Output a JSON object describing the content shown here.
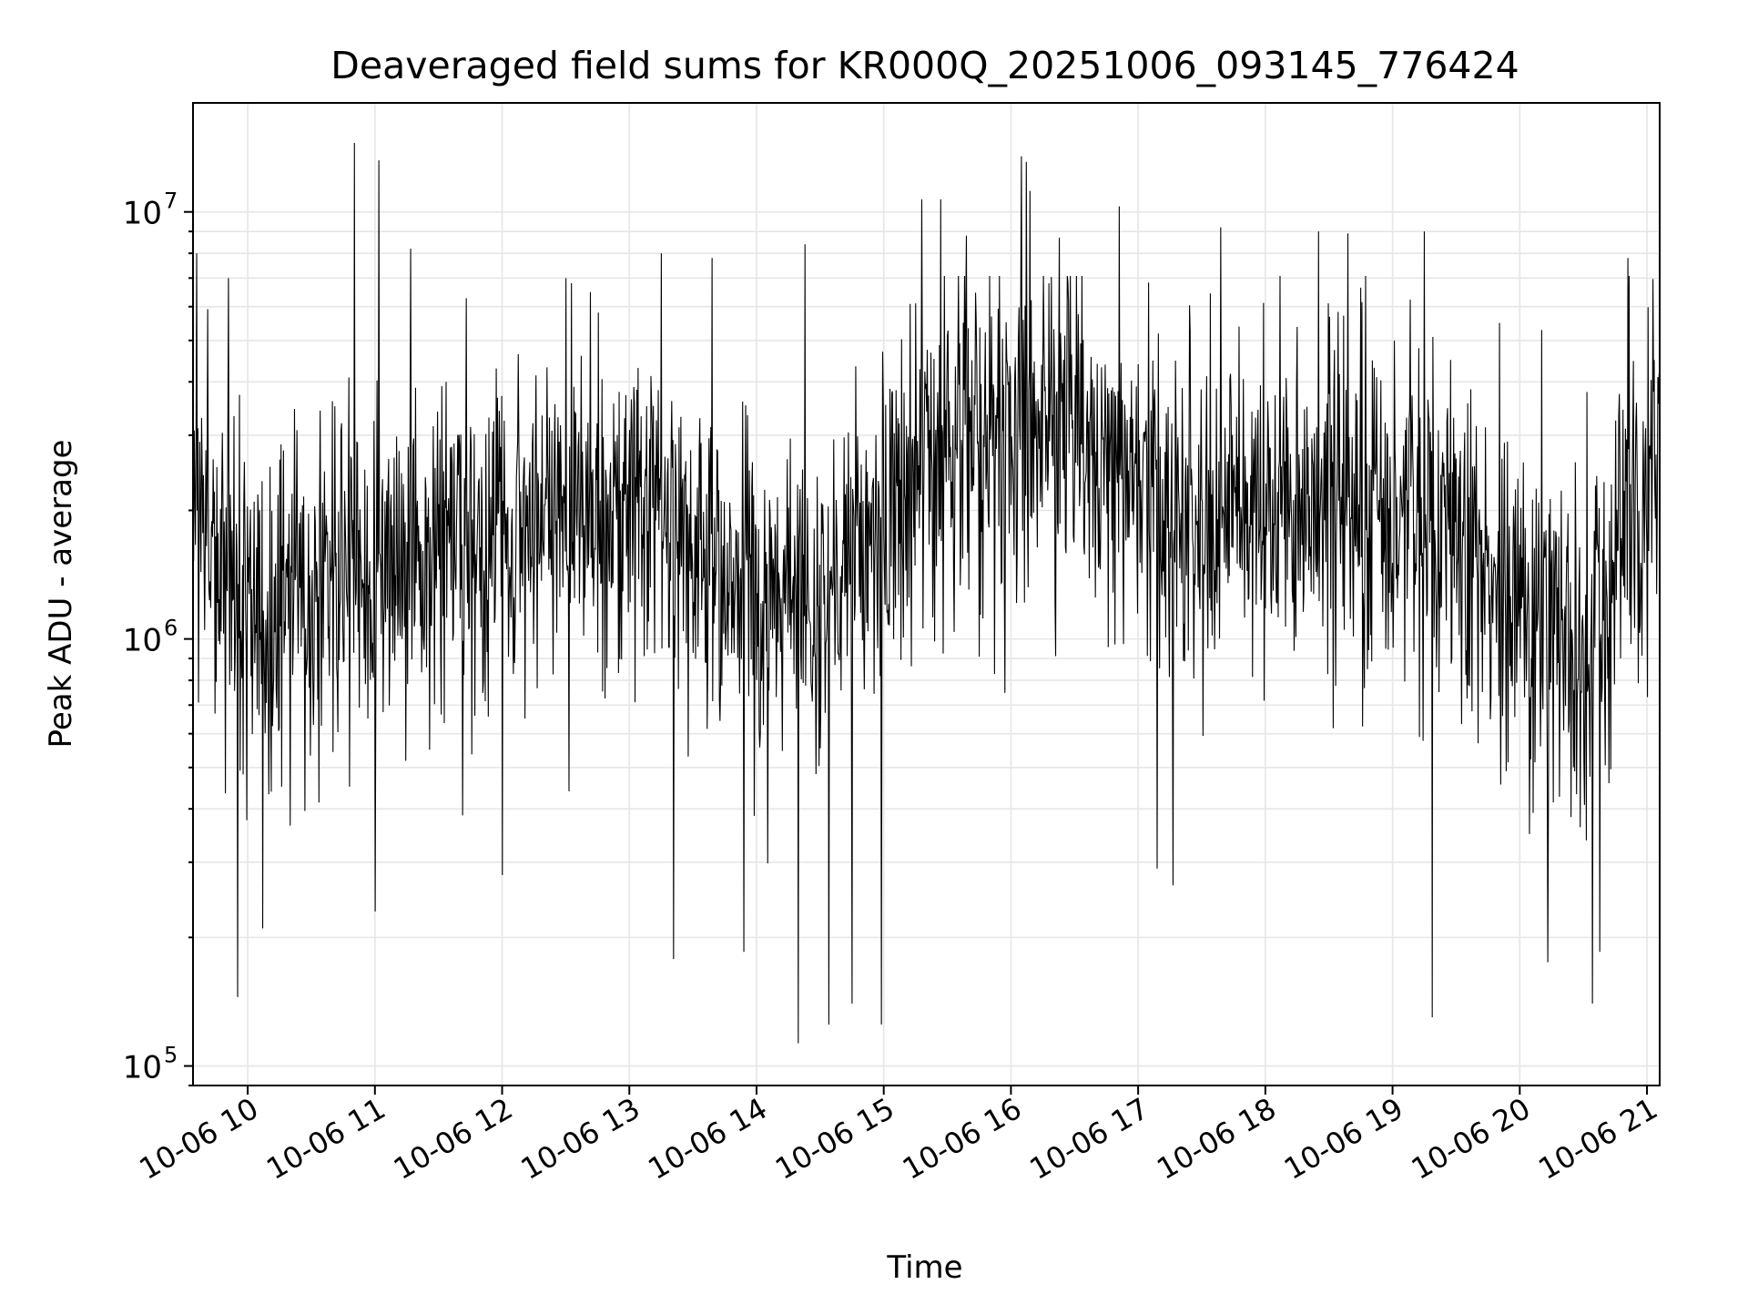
{
  "chart_data": {
    "type": "line",
    "title": "Deaveraged field sums for KR000Q_20251006_093145_776424",
    "xlabel": "Time",
    "ylabel": "Peak ADU - average",
    "yscale": "log",
    "ylim": [
      90000,
      18000000
    ],
    "xlim_hours": [
      9.57,
      21.1
    ],
    "x_ticks": [
      {
        "hour": 10,
        "label": "10-06 10"
      },
      {
        "hour": 11,
        "label": "10-06 11"
      },
      {
        "hour": 12,
        "label": "10-06 12"
      },
      {
        "hour": 13,
        "label": "10-06 13"
      },
      {
        "hour": 14,
        "label": "10-06 14"
      },
      {
        "hour": 15,
        "label": "10-06 15"
      },
      {
        "hour": 16,
        "label": "10-06 16"
      },
      {
        "hour": 17,
        "label": "10-06 17"
      },
      {
        "hour": 18,
        "label": "10-06 18"
      },
      {
        "hour": 19,
        "label": "10-06 19"
      },
      {
        "hour": 20,
        "label": "10-06 20"
      },
      {
        "hour": 21,
        "label": "10-06 21"
      }
    ],
    "y_ticks": [
      {
        "value": 100000,
        "base": "10",
        "exp": "5"
      },
      {
        "value": 1000000,
        "base": "10",
        "exp": "6"
      },
      {
        "value": 10000000,
        "base": "10",
        "exp": "7"
      }
    ],
    "grid": true,
    "series": [
      {
        "name": "Deaveraged field sums",
        "color": "#000000",
        "points": 2400,
        "trend_hours": [
          9.57,
          10.0,
          10.5,
          11.0,
          11.5,
          12.0,
          12.5,
          13.0,
          13.5,
          14.0,
          14.5,
          15.0,
          15.5,
          16.0,
          16.5,
          17.0,
          17.5,
          18.0,
          18.5,
          19.0,
          19.5,
          20.0,
          20.5,
          21.0,
          21.1
        ],
        "trend_median": [
          2200000,
          1100000,
          1200000,
          1500000,
          1600000,
          1700000,
          2000000,
          1900000,
          1500000,
          1300000,
          1200000,
          2000000,
          2800000,
          3200000,
          3000000,
          2300000,
          1600000,
          2200000,
          2100000,
          1900000,
          1700000,
          1200000,
          1000000,
          2200000,
          2500000
        ],
        "peak_values": [
          {
            "hour": 9.6,
            "value": 8000000
          },
          {
            "hour": 9.85,
            "value": 7000000
          },
          {
            "hour": 10.84,
            "value": 14500000
          },
          {
            "hour": 11.03,
            "value": 13200000
          },
          {
            "hour": 11.28,
            "value": 8200000
          },
          {
            "hour": 12.5,
            "value": 7000000
          },
          {
            "hour": 13.25,
            "value": 8000000
          },
          {
            "hour": 13.65,
            "value": 7800000
          },
          {
            "hour": 14.38,
            "value": 8400000
          },
          {
            "hour": 15.3,
            "value": 10700000
          },
          {
            "hour": 15.45,
            "value": 10700000
          },
          {
            "hour": 15.65,
            "value": 8800000
          },
          {
            "hour": 16.08,
            "value": 13500000
          },
          {
            "hour": 16.12,
            "value": 13100000
          },
          {
            "hour": 16.15,
            "value": 11200000
          },
          {
            "hour": 16.38,
            "value": 8700000
          },
          {
            "hour": 16.85,
            "value": 10300000
          },
          {
            "hour": 17.65,
            "value": 9200000
          },
          {
            "hour": 18.42,
            "value": 9000000
          },
          {
            "hour": 18.65,
            "value": 8900000
          },
          {
            "hour": 19.25,
            "value": 9000000
          },
          {
            "hour": 20.85,
            "value": 7800000
          }
        ],
        "trough_values": [
          {
            "hour": 9.92,
            "value": 145000
          },
          {
            "hour": 10.12,
            "value": 210000
          },
          {
            "hour": 11.0,
            "value": 230000
          },
          {
            "hour": 12.0,
            "value": 280000
          },
          {
            "hour": 13.35,
            "value": 178000
          },
          {
            "hour": 13.9,
            "value": 185000
          },
          {
            "hour": 14.33,
            "value": 113000
          },
          {
            "hour": 14.57,
            "value": 125000
          },
          {
            "hour": 14.75,
            "value": 140000
          },
          {
            "hour": 14.98,
            "value": 125000
          },
          {
            "hour": 17.15,
            "value": 290000
          },
          {
            "hour": 19.31,
            "value": 130000
          },
          {
            "hour": 20.22,
            "value": 175000
          },
          {
            "hour": 20.57,
            "value": 140000
          },
          {
            "hour": 20.63,
            "value": 185000
          }
        ]
      }
    ]
  }
}
